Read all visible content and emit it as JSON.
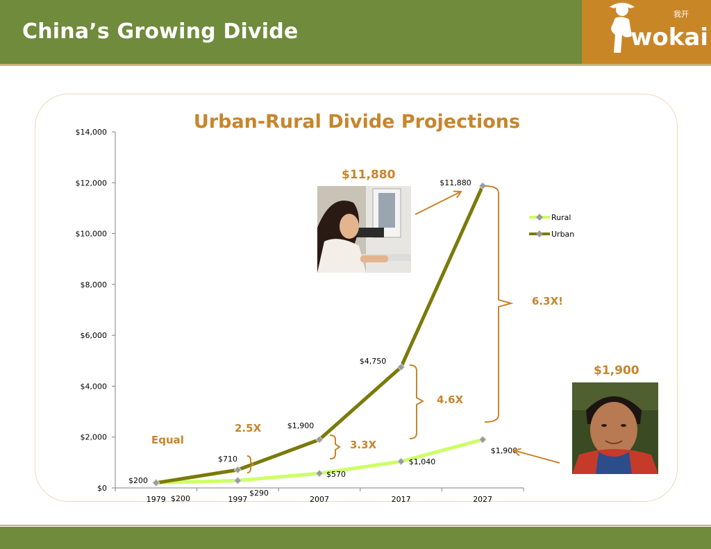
{
  "header": {
    "title": "China’s Growing Divide"
  },
  "logo": {
    "text": "wokai",
    "chinese": "我开"
  },
  "colors": {
    "header_green": "#6f8b3b",
    "logo_orange": "#c98627",
    "annotation_orange": "#c8852a",
    "rural": "#ccff66",
    "urban": "#7a7a0a"
  },
  "chart_data": {
    "type": "line",
    "title": "Urban-Rural Divide Projections",
    "x": [
      "1979",
      "1997",
      "2007",
      "2017",
      "2027"
    ],
    "ylim": [
      0,
      14000
    ],
    "yticks": [
      "$0",
      "$2,000",
      "$4,000",
      "$6,000",
      "$8,000",
      "$10,000",
      "$12,000",
      "$14,000"
    ],
    "legend_position": "right",
    "series": [
      {
        "name": "Rural",
        "values": [
          200,
          290,
          570,
          1040,
          1900
        ],
        "labels": [
          "$200",
          "$290",
          "$570",
          "$1,040",
          "$1,900"
        ]
      },
      {
        "name": "Urban",
        "values": [
          200,
          710,
          1900,
          4750,
          11880
        ],
        "labels": [
          "$200",
          "$710",
          "$1,900",
          "$4,750",
          "$11,880"
        ]
      }
    ],
    "annotations": {
      "equal": "Equal",
      "ratio_1997": "2.5X",
      "ratio_2007": "3.3X",
      "ratio_2017": "4.6X",
      "ratio_2027": "6.3X!",
      "urban_callout": "$11,880",
      "rural_callout": "$1,900"
    }
  }
}
